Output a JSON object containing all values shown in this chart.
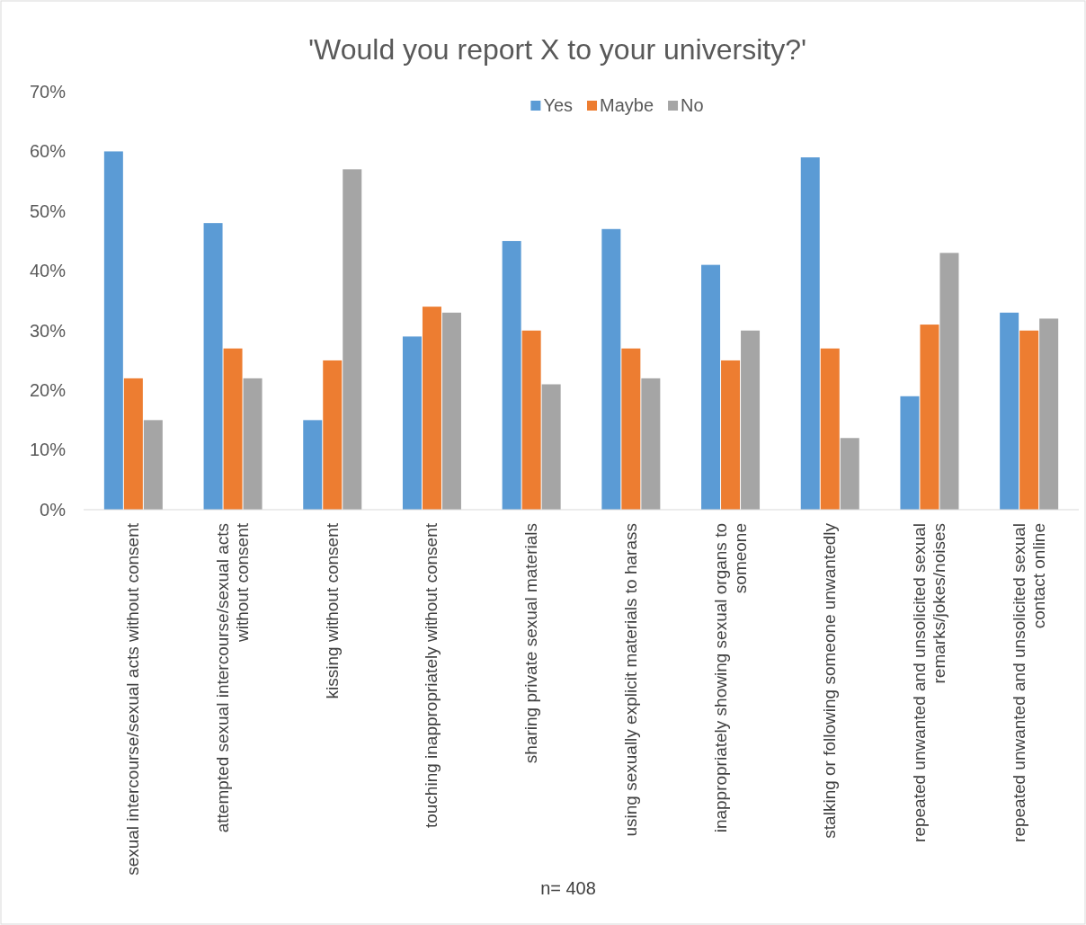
{
  "chart_data": {
    "type": "bar",
    "title": "'Would you report X to your university?'",
    "categories": [
      "sexual intercourse/sexual acts without consent",
      "attempted sexual intercourse/sexual acts without consent",
      "kissing without consent",
      "touching inappropriately without consent",
      "sharing private sexual materials",
      "using sexually explicit materials to harass",
      "inappropriately showing sexual organs to someone",
      "stalking or following someone unwantedly",
      "repeated unwanted and unsolicited sexual remarks/jokes/noises",
      "repeated unwanted and unsolicited sexual contact online"
    ],
    "series": [
      {
        "name": "Yes",
        "color": "#5b9bd5",
        "values": [
          0.6,
          0.48,
          0.15,
          0.29,
          0.45,
          0.47,
          0.41,
          0.59,
          0.19,
          0.33
        ]
      },
      {
        "name": "Maybe",
        "color": "#ed7d31",
        "values": [
          0.22,
          0.27,
          0.25,
          0.34,
          0.3,
          0.27,
          0.25,
          0.27,
          0.31,
          0.3
        ]
      },
      {
        "name": "No",
        "color": "#a5a5a5",
        "values": [
          0.15,
          0.22,
          0.57,
          0.33,
          0.21,
          0.22,
          0.3,
          0.12,
          0.43,
          0.32
        ]
      }
    ],
    "ylim": [
      0,
      0.7
    ],
    "yticks": [
      {
        "value": 0,
        "label": "0%"
      },
      {
        "value": 0.1,
        "label": "10%"
      },
      {
        "value": 0.2,
        "label": "20%"
      },
      {
        "value": 0.3,
        "label": "30%"
      },
      {
        "value": 0.4,
        "label": "40%"
      },
      {
        "value": 0.5,
        "label": "50%"
      },
      {
        "value": 0.6,
        "label": "60%"
      },
      {
        "value": 0.7,
        "label": "70%"
      }
    ],
    "grid": false,
    "legend": "top",
    "annotations": [
      "n= 408"
    ]
  }
}
